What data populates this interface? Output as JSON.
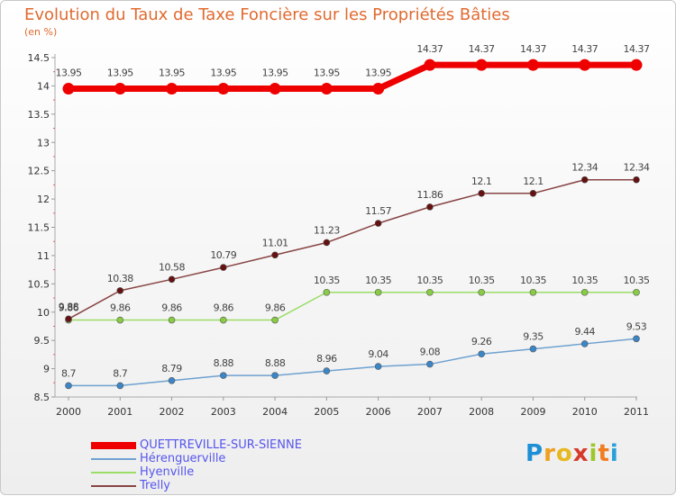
{
  "chart_data": {
    "type": "line",
    "title": "Evolution du Taux de Taxe Foncière sur les Propriétés Bâties",
    "unit_label": "(en %)",
    "x": [
      "2000",
      "2001",
      "2002",
      "2003",
      "2004",
      "2005",
      "2006",
      "2007",
      "2008",
      "2009",
      "2010",
      "2011"
    ],
    "ylim": [
      8.5,
      14.5
    ],
    "yticks": [
      8.5,
      9,
      9.5,
      10,
      10.5,
      11,
      11.5,
      12,
      12.5,
      13,
      13.5,
      14,
      14.5
    ],
    "ytick_labels": [
      "8.5",
      "9",
      "9.5",
      "10",
      "10.5",
      "11",
      "11.5",
      "12",
      "12.5",
      "13",
      "13.5",
      "14",
      "14.5"
    ],
    "grid": false,
    "legend_position": "bottom-left",
    "series": [
      {
        "name": "QUETTREVILLE-SUR-SIENNE",
        "color": "#ee0000",
        "values": [
          13.95,
          13.95,
          13.95,
          13.95,
          13.95,
          13.95,
          13.95,
          14.37,
          14.37,
          14.37,
          14.37,
          14.37
        ],
        "labels": [
          "13.95",
          "13.95",
          "13.95",
          "13.95",
          "13.95",
          "13.95",
          "13.95",
          "14.37",
          "14.37",
          "14.37",
          "14.37",
          "14.37"
        ]
      },
      {
        "name": "Hérenguerville",
        "color": "#6fa1d0",
        "marker_color": "#3b86c7",
        "values": [
          8.7,
          8.7,
          8.79,
          8.88,
          8.88,
          8.96,
          9.04,
          9.08,
          9.26,
          9.35,
          9.44,
          9.53
        ],
        "labels": [
          "8.7",
          "8.7",
          "8.79",
          "8.88",
          "8.88",
          "8.96",
          "9.04",
          "9.08",
          "9.26",
          "9.35",
          "9.44",
          "9.53"
        ]
      },
      {
        "name": "Hyenville",
        "color": "#99dd66",
        "marker_color": "#88cc44",
        "values": [
          9.86,
          9.86,
          9.86,
          9.86,
          9.86,
          10.35,
          10.35,
          10.35,
          10.35,
          10.35,
          10.35,
          10.35
        ],
        "labels": [
          "9.86",
          "9.86",
          "9.86",
          "9.86",
          "9.86",
          "10.35",
          "10.35",
          "10.35",
          "10.35",
          "10.35",
          "10.35",
          "10.35"
        ]
      },
      {
        "name": "Trelly",
        "color": "#884444",
        "marker_color": "#661111",
        "values": [
          9.88,
          10.38,
          10.58,
          10.79,
          11.01,
          11.23,
          11.57,
          11.86,
          12.1,
          12.1,
          12.34,
          12.34
        ],
        "labels": [
          "9.88",
          "10.38",
          "10.58",
          "10.79",
          "11.01",
          "11.23",
          "11.57",
          "11.86",
          "12.1",
          "12.1",
          "12.34",
          "12.34"
        ]
      }
    ]
  },
  "logo": {
    "letters": [
      "P",
      "r",
      "o",
      "x",
      "i",
      "t",
      "i"
    ],
    "colors": [
      "#1e8fd6",
      "#f0a020",
      "#e8b820",
      "#d63a2a",
      "#9cc82c",
      "#f07d20",
      "#2aa0d8"
    ]
  }
}
